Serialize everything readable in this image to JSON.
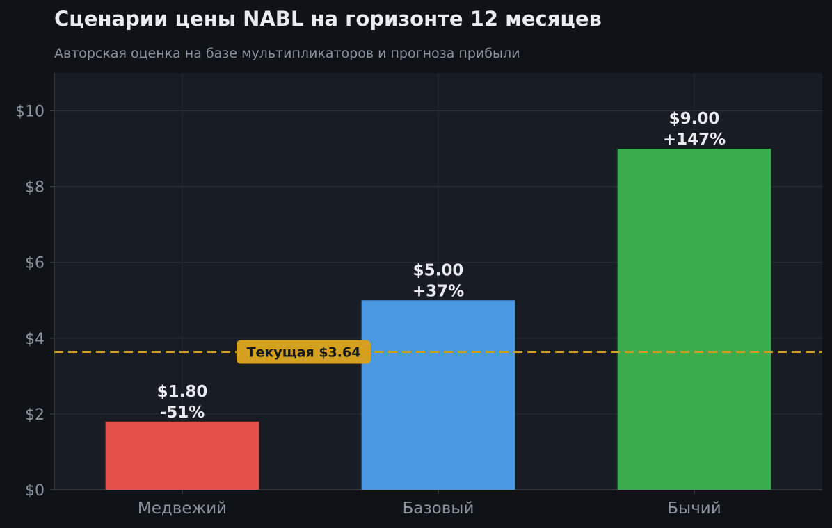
{
  "chart_data": {
    "type": "bar",
    "title": "Сценарии цены NABL на горизонте 12 месяцев",
    "subtitle": "Авторская оценка на базе мультипликаторов и прогноза прибыли",
    "categories": [
      "Медвежий",
      "Базовый",
      "Бычий"
    ],
    "values": [
      1.8,
      5.0,
      9.0
    ],
    "value_labels": [
      "$1.80",
      "$5.00",
      "$9.00"
    ],
    "change_labels": [
      "-51%",
      "+37%",
      "+147%"
    ],
    "bar_colors": [
      "#e5504a",
      "#4a98e0",
      "#3aac4e"
    ],
    "ylim": [
      0,
      11
    ],
    "yticks": [
      0,
      2,
      4,
      6,
      8,
      10
    ],
    "ytick_labels": [
      "$0",
      "$2",
      "$4",
      "$6",
      "$8",
      "$10"
    ],
    "grid": true,
    "reference_line": {
      "value": 3.64,
      "label": "Текущая $3.64",
      "color": "#d4a020",
      "style": "dashed"
    },
    "xlabel": "",
    "ylabel": ""
  }
}
